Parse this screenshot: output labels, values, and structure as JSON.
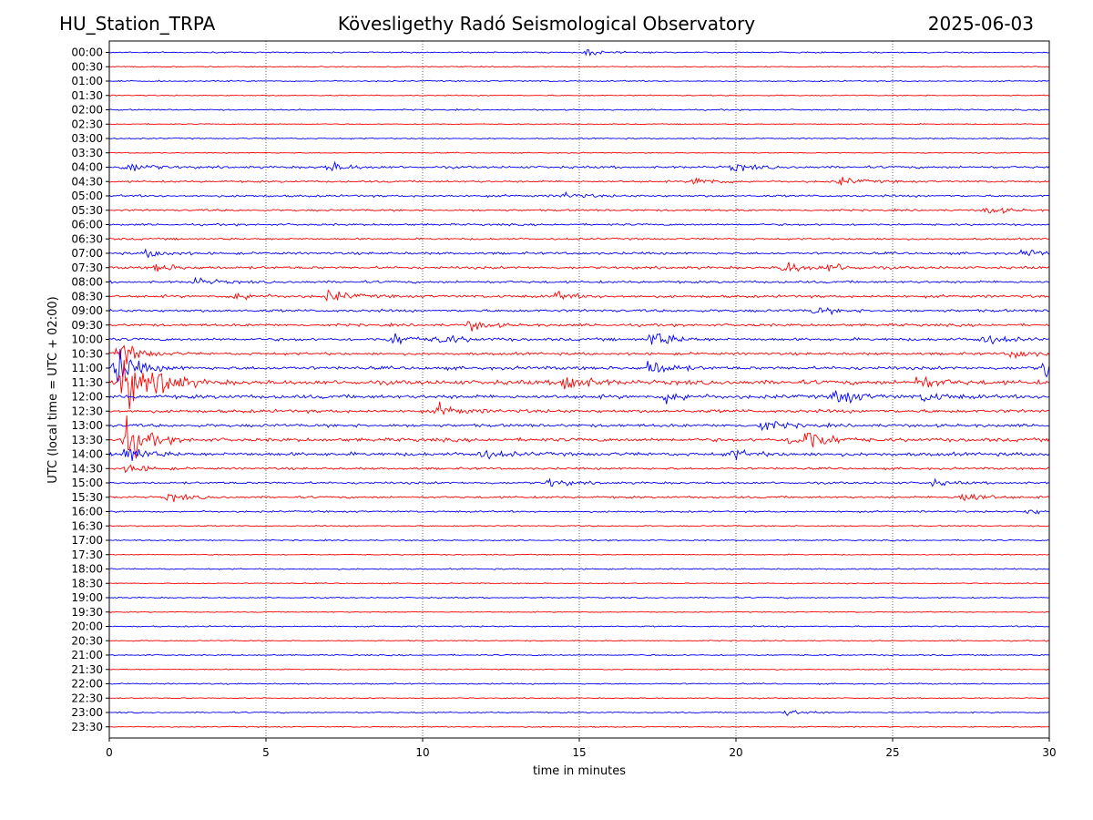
{
  "header": {
    "station": "HU_Station_TRPA",
    "observatory": "Kövesligethy Radó Seismological Observatory",
    "date": "2025-06-03"
  },
  "chart_data": {
    "type": "line",
    "title": "Kövesligethy Radó Seismological Observatory",
    "xlabel": "time in minutes",
    "ylabel": "UTC (local time = UTC + 02:00)",
    "xlim": [
      0,
      30
    ],
    "xticks": [
      "0",
      "5",
      "10",
      "15",
      "20",
      "25",
      "30"
    ],
    "vertical_gridlines_at": [
      5,
      10,
      15,
      20,
      25
    ],
    "trace_colors": [
      "#0000ff",
      "#ff0000"
    ],
    "rows": [
      "00:00",
      "00:30",
      "01:00",
      "01:30",
      "02:00",
      "02:30",
      "03:00",
      "03:30",
      "04:00",
      "04:30",
      "05:00",
      "05:30",
      "06:00",
      "06:30",
      "07:00",
      "07:30",
      "08:00",
      "08:30",
      "09:00",
      "09:30",
      "10:00",
      "10:30",
      "11:00",
      "11:30",
      "12:00",
      "12:30",
      "13:00",
      "13:30",
      "14:00",
      "14:30",
      "15:00",
      "15:30",
      "16:00",
      "16:30",
      "17:00",
      "17:30",
      "18:00",
      "18:30",
      "19:00",
      "19:30",
      "20:00",
      "20:30",
      "21:00",
      "21:30",
      "22:00",
      "22:30",
      "23:00",
      "23:30"
    ],
    "noise_level": [
      0.06,
      0.05,
      0.06,
      0.05,
      0.06,
      0.05,
      0.06,
      0.05,
      0.11,
      0.09,
      0.1,
      0.09,
      0.09,
      0.09,
      0.11,
      0.12,
      0.11,
      0.12,
      0.12,
      0.12,
      0.13,
      0.12,
      0.15,
      0.2,
      0.17,
      0.15,
      0.14,
      0.16,
      0.16,
      0.1,
      0.1,
      0.1,
      0.08,
      0.06,
      0.06,
      0.05,
      0.06,
      0.05,
      0.06,
      0.05,
      0.06,
      0.05,
      0.06,
      0.05,
      0.06,
      0.05,
      0.06,
      0.05
    ],
    "events": [
      {
        "row": "00:00",
        "minute": 15.2,
        "amp": 0.3
      },
      {
        "row": "04:00",
        "minute": 0.5,
        "amp": 0.6
      },
      {
        "row": "04:00",
        "minute": 7.0,
        "amp": 0.5
      },
      {
        "row": "04:00",
        "minute": 19.9,
        "amp": 0.4
      },
      {
        "row": "04:30",
        "minute": 18.7,
        "amp": 0.5
      },
      {
        "row": "04:30",
        "minute": 23.3,
        "amp": 0.4
      },
      {
        "row": "05:00",
        "minute": 14.5,
        "amp": 0.3
      },
      {
        "row": "05:30",
        "minute": 28.0,
        "amp": 0.4
      },
      {
        "row": "07:00",
        "minute": 1.2,
        "amp": 0.4
      },
      {
        "row": "07:00",
        "minute": 29.2,
        "amp": 0.4
      },
      {
        "row": "07:30",
        "minute": 1.5,
        "amp": 0.4
      },
      {
        "row": "07:30",
        "minute": 21.5,
        "amp": 0.7
      },
      {
        "row": "07:30",
        "minute": 23.0,
        "amp": 0.4
      },
      {
        "row": "08:00",
        "minute": 2.7,
        "amp": 0.4
      },
      {
        "row": "08:30",
        "minute": 4.0,
        "amp": 0.5
      },
      {
        "row": "08:30",
        "minute": 7.0,
        "amp": 0.6
      },
      {
        "row": "08:30",
        "minute": 14.2,
        "amp": 0.4
      },
      {
        "row": "09:00",
        "minute": 22.5,
        "amp": 0.4
      },
      {
        "row": "09:30",
        "minute": 11.5,
        "amp": 0.5
      },
      {
        "row": "10:00",
        "minute": 9.0,
        "amp": 0.7
      },
      {
        "row": "10:00",
        "minute": 10.5,
        "amp": 0.5
      },
      {
        "row": "10:00",
        "minute": 17.3,
        "amp": 1.0
      },
      {
        "row": "10:00",
        "minute": 27.8,
        "amp": 0.6
      },
      {
        "row": "10:30",
        "minute": 0.3,
        "amp": 1.2
      },
      {
        "row": "10:30",
        "minute": 28.8,
        "amp": 0.5
      },
      {
        "row": "11:00",
        "minute": 0.2,
        "amp": 2.0
      },
      {
        "row": "11:00",
        "minute": 17.2,
        "amp": 0.9
      },
      {
        "row": "11:00",
        "minute": 29.9,
        "amp": 2.0
      },
      {
        "row": "11:30",
        "minute": 0.4,
        "amp": 3.2
      },
      {
        "row": "11:30",
        "minute": 1.6,
        "amp": 1.2
      },
      {
        "row": "11:30",
        "minute": 14.5,
        "amp": 1.2
      },
      {
        "row": "11:30",
        "minute": 25.8,
        "amp": 0.7
      },
      {
        "row": "12:00",
        "minute": 17.8,
        "amp": 0.6
      },
      {
        "row": "12:00",
        "minute": 23.2,
        "amp": 0.9
      },
      {
        "row": "12:00",
        "minute": 26.0,
        "amp": 0.5
      },
      {
        "row": "12:30",
        "minute": 10.5,
        "amp": 0.6
      },
      {
        "row": "13:00",
        "minute": 20.8,
        "amp": 0.6
      },
      {
        "row": "13:30",
        "minute": 0.5,
        "amp": 2.2
      },
      {
        "row": "13:30",
        "minute": 21.8,
        "amp": 1.1
      },
      {
        "row": "13:30",
        "minute": 22.3,
        "amp": 0.8
      },
      {
        "row": "14:00",
        "minute": 0.5,
        "amp": 1.0
      },
      {
        "row": "14:00",
        "minute": 11.8,
        "amp": 0.5
      },
      {
        "row": "14:00",
        "minute": 19.8,
        "amp": 0.5
      },
      {
        "row": "14:30",
        "minute": 0.6,
        "amp": 0.5
      },
      {
        "row": "15:00",
        "minute": 14.0,
        "amp": 0.4
      },
      {
        "row": "15:00",
        "minute": 26.2,
        "amp": 0.3
      },
      {
        "row": "15:30",
        "minute": 1.9,
        "amp": 0.4
      },
      {
        "row": "15:30",
        "minute": 27.2,
        "amp": 0.7
      },
      {
        "row": "16:00",
        "minute": 29.3,
        "amp": 0.3
      },
      {
        "row": "23:00",
        "minute": 21.6,
        "amp": 0.3
      }
    ]
  }
}
